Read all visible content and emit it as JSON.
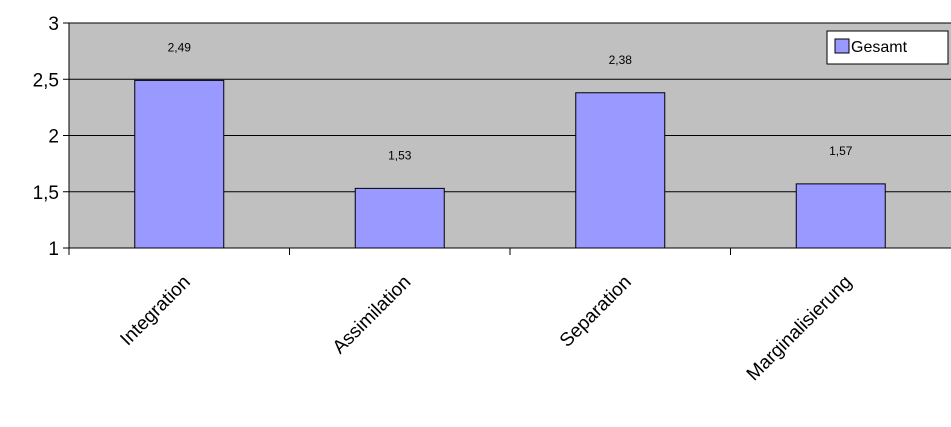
{
  "chart_data": {
    "type": "bar",
    "categories": [
      "Integration",
      "Assimilation",
      "Separation",
      "Marginalisierung"
    ],
    "series": [
      {
        "name": "Gesamt",
        "values": [
          2.49,
          1.53,
          2.38,
          1.57
        ],
        "labels": [
          "2,49",
          "1,53",
          "2,38",
          "1,57"
        ],
        "color": "#9999ff"
      }
    ],
    "ylim": [
      1,
      3
    ],
    "yticks": [
      1,
      1.5,
      2,
      2.5,
      3
    ],
    "ytick_labels": [
      "1",
      "1,5",
      "2",
      "2,5",
      "3"
    ],
    "grid": true,
    "legend": "top-right",
    "plot_background": "#c0c0c0"
  }
}
